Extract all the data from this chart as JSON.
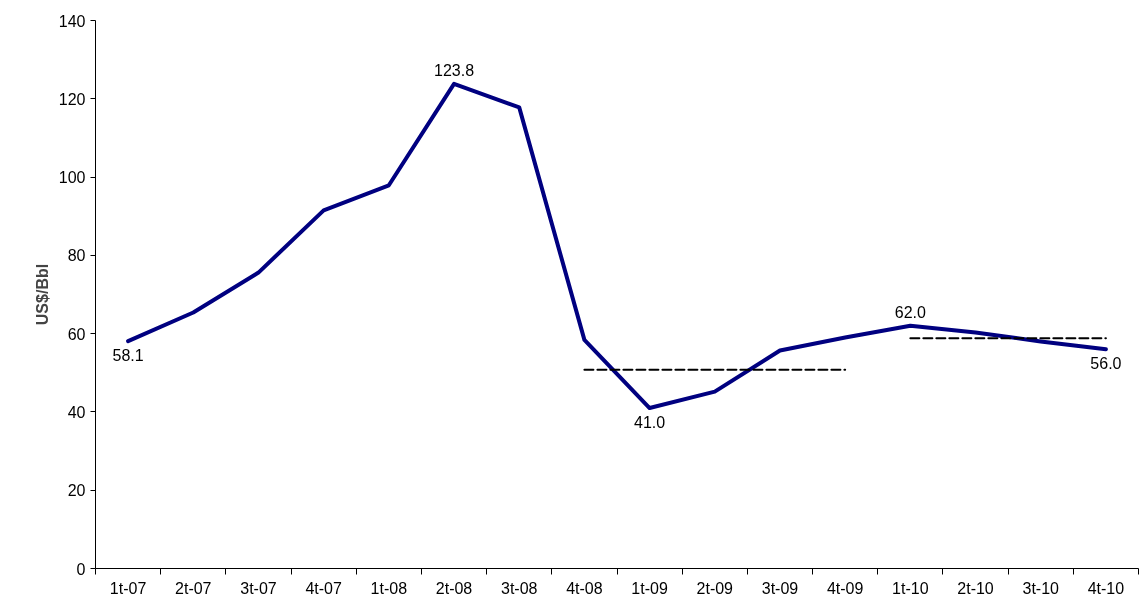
{
  "chart_data": {
    "type": "line",
    "ylabel": "US$/Bbl",
    "categories": [
      "1t-07",
      "2t-07",
      "3t-07",
      "4t-07",
      "1t-08",
      "2t-08",
      "3t-08",
      "4t-08",
      "1t-09",
      "2t-09",
      "3t-09",
      "4t-09",
      "1t-10",
      "2t-10",
      "3t-10",
      "4t-10"
    ],
    "series": [
      {
        "color": "#000080",
        "values": [
          58.1,
          65.4,
          75.6,
          91.5,
          97.9,
          123.8,
          117.8,
          58.4,
          41.0,
          45.2,
          55.7,
          59.0,
          62.0,
          60.3,
          58.0,
          56.0
        ],
        "value_labels": [
          "58.1",
          null,
          null,
          null,
          null,
          "123.8",
          null,
          null,
          "41.0",
          null,
          null,
          null,
          "62.0",
          null,
          null,
          "56.0"
        ],
        "line_style": "solid"
      },
      {
        "color": "#000000",
        "values": [
          null,
          null,
          null,
          null,
          null,
          null,
          null,
          50.8,
          50.8,
          50.8,
          50.8,
          50.8,
          null,
          null,
          null,
          null
        ],
        "line_style": "dashed"
      },
      {
        "color": "#000000",
        "values": [
          null,
          null,
          null,
          null,
          null,
          null,
          null,
          null,
          null,
          null,
          null,
          null,
          58.8,
          58.8,
          58.8,
          58.8
        ],
        "line_style": "dashed"
      }
    ],
    "ylim": [
      0,
      140
    ],
    "yticks": [
      0,
      20,
      40,
      60,
      80,
      100,
      120,
      140
    ],
    "grid": false,
    "marker": "none"
  }
}
